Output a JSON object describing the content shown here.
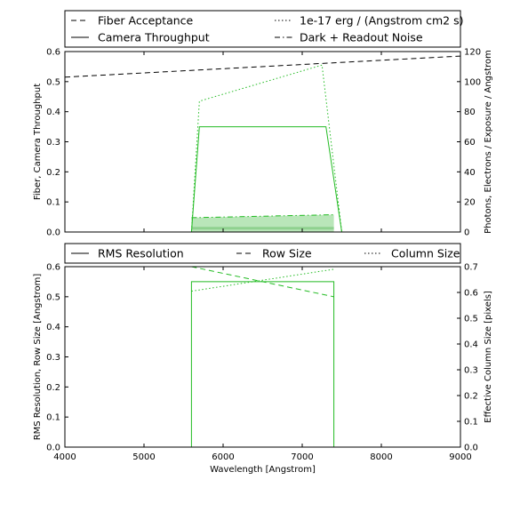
{
  "chart_data": [
    {
      "type": "line",
      "panel": "top",
      "legend": {
        "placement": "above",
        "entries": [
          {
            "label": "Fiber Acceptance",
            "style": "dashed",
            "color": "#000000"
          },
          {
            "label": "1e-17 erg / (Angstrom cm2 s)",
            "style": "dotted",
            "color": "#000000"
          },
          {
            "label": "Camera Throughput",
            "style": "solid",
            "color": "#000000"
          },
          {
            "label": "Dark + Readout Noise",
            "style": "dashdot",
            "color": "#000000"
          }
        ]
      },
      "xlim": [
        4000,
        9000
      ],
      "ylim": [
        0,
        0.6
      ],
      "y2lim": [
        0,
        120
      ],
      "xticks": [
        "4000",
        "5000",
        "6000",
        "7000",
        "8000",
        "9000"
      ],
      "yticks": [
        "0.0",
        "0.1",
        "0.2",
        "0.3",
        "0.4",
        "0.5",
        "0.6"
      ],
      "y2ticks": [
        "0",
        "20",
        "40",
        "60",
        "80",
        "100",
        "120"
      ],
      "ylabel": "Fiber, Camera Throughput",
      "y2label": "Photons, Electrons / Exposure / Angstrom",
      "series": [
        {
          "name": "Fiber Acceptance",
          "axis": "left",
          "style": "dashed",
          "color": "#000000",
          "x": [
            4000,
            9000
          ],
          "y": [
            0.515,
            0.585
          ]
        },
        {
          "name": "Camera Throughput",
          "axis": "left",
          "style": "solid",
          "color": "#22bb22",
          "x": [
            4000,
            5600,
            5700,
            7300,
            7500,
            9000
          ],
          "y": [
            0,
            0,
            0.35,
            0.35,
            0,
            0
          ]
        },
        {
          "name": "1e-17 erg / (Angstrom cm2 s)",
          "axis": "right",
          "style": "dotted",
          "color": "#22bb22",
          "x": [
            4000,
            5600,
            5700,
            7250,
            7500,
            9000
          ],
          "y": [
            0,
            0,
            87,
            111,
            0,
            0
          ]
        },
        {
          "name": "Dark + Readout Noise",
          "axis": "right",
          "style": "dashdot",
          "color": "#22bb22",
          "x": [
            5600,
            7400
          ],
          "y": [
            9.5,
            11.5
          ]
        }
      ],
      "fill": {
        "color": "#b9e6b9",
        "x": [
          5600,
          7400
        ],
        "y_top": [
          9.5,
          11.5
        ],
        "y_band": 2.5
      }
    },
    {
      "type": "line",
      "panel": "bottom",
      "legend": {
        "placement": "above",
        "entries": [
          {
            "label": "RMS Resolution",
            "style": "solid",
            "color": "#000000"
          },
          {
            "label": "Row Size",
            "style": "dashed",
            "color": "#000000"
          },
          {
            "label": "Column Size",
            "style": "dotted",
            "color": "#000000"
          }
        ]
      },
      "xlim": [
        4000,
        9000
      ],
      "ylim": [
        0,
        0.6
      ],
      "y2lim": [
        0,
        0.7
      ],
      "xticks": [
        "4000",
        "5000",
        "6000",
        "7000",
        "8000",
        "9000"
      ],
      "yticks": [
        "0.0",
        "0.1",
        "0.2",
        "0.3",
        "0.4",
        "0.5",
        "0.6"
      ],
      "y2ticks": [
        "0.0",
        "0.1",
        "0.2",
        "0.3",
        "0.4",
        "0.5",
        "0.6",
        "0.7"
      ],
      "xlabel": "Wavelength [Angstrom]",
      "ylabel": "RMS Resolution, Row Size [Angstrom]",
      "y2label": "Effective Column Size [pixels]",
      "series": [
        {
          "name": "RMS Resolution",
          "axis": "left",
          "style": "solid",
          "color": "#22bb22",
          "x": [
            4000,
            5600,
            5600,
            7400,
            7400,
            9000
          ],
          "y": [
            0,
            0,
            0.55,
            0.55,
            0,
            0
          ]
        },
        {
          "name": "Row Size",
          "axis": "left",
          "style": "dashed",
          "color": "#22bb22",
          "x": [
            5600,
            7400
          ],
          "y": [
            0.6,
            0.5
          ]
        },
        {
          "name": "Column Size",
          "axis": "right",
          "style": "dotted",
          "color": "#22bb22",
          "x": [
            5600,
            7400
          ],
          "y": [
            0.605,
            0.69
          ]
        }
      ]
    }
  ]
}
